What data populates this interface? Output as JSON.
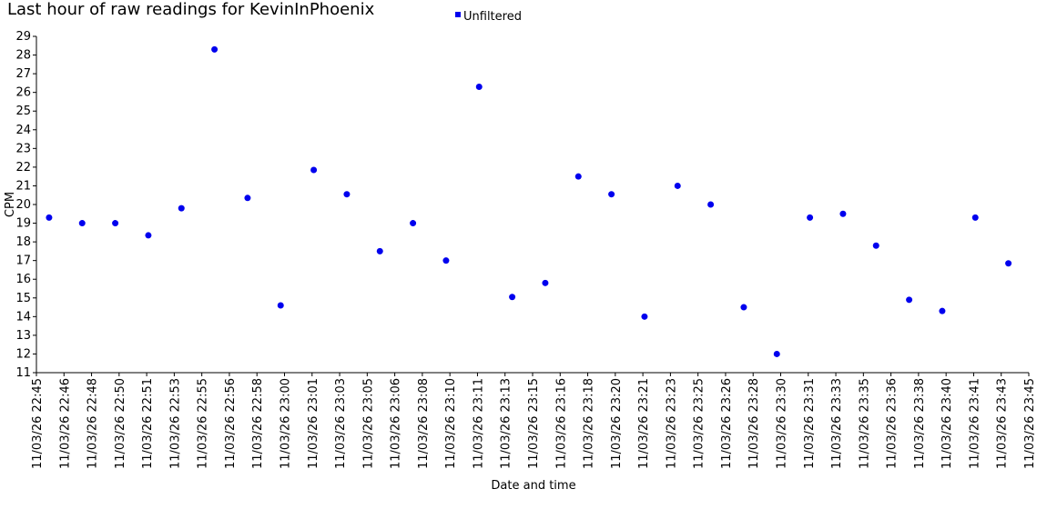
{
  "chart_data": {
    "type": "scatter",
    "title": "Last hour of raw readings for KevinInPhoenix",
    "x_label": "Date and time",
    "y_label": "CPM",
    "legend_position": "top",
    "series": [
      {
        "name": "Unfiltered",
        "color": "#0000ee",
        "x": [
          "11/03/26 22:45:46",
          "11/03/26 22:47:46",
          "11/03/26 22:49:46",
          "11/03/26 22:51:46",
          "11/03/26 22:53:46",
          "11/03/26 22:55:46",
          "11/03/26 22:57:46",
          "11/03/26 22:59:46",
          "11/03/26 23:01:46",
          "11/03/26 23:03:46",
          "11/03/26 23:05:46",
          "11/03/26 23:07:46",
          "11/03/26 23:09:46",
          "11/03/26 23:11:46",
          "11/03/26 23:13:46",
          "11/03/26 23:15:46",
          "11/03/26 23:17:46",
          "11/03/26 23:19:46",
          "11/03/26 23:21:46",
          "11/03/26 23:23:46",
          "11/03/26 23:25:46",
          "11/03/26 23:27:46",
          "11/03/26 23:29:46",
          "11/03/26 23:31:46",
          "11/03/26 23:33:46",
          "11/03/26 23:35:46",
          "11/03/26 23:37:46",
          "11/03/26 23:39:46",
          "11/03/26 23:41:46",
          "11/03/26 23:43:46"
        ],
        "values": [
          19.3,
          19.0,
          19.0,
          18.35,
          19.8,
          28.3,
          20.35,
          14.6,
          21.85,
          20.55,
          17.5,
          19.0,
          17.0,
          26.3,
          15.05,
          15.8,
          21.5,
          20.55,
          14.0,
          21.0,
          20.0,
          14.5,
          12.0,
          19.3,
          19.5,
          17.8,
          14.9,
          14.3,
          19.3,
          16.85
        ]
      }
    ],
    "xlim": [
      "11/03/26 22:45:00",
      "11/03/26 23:45:00"
    ],
    "xticks": [
      {
        "value": "11/03/26 22:45:00",
        "label": "11/03/26 22:45"
      },
      {
        "value": "11/03/26 22:46:40",
        "label": "11/03/26 22:46"
      },
      {
        "value": "11/03/26 22:48:20",
        "label": "11/03/26 22:48"
      },
      {
        "value": "11/03/26 22:50:00",
        "label": "11/03/26 22:50"
      },
      {
        "value": "11/03/26 22:51:40",
        "label": "11/03/26 22:51"
      },
      {
        "value": "11/03/26 22:53:20",
        "label": "11/03/26 22:53"
      },
      {
        "value": "11/03/26 22:55:00",
        "label": "11/03/26 22:55"
      },
      {
        "value": "11/03/26 22:56:40",
        "label": "11/03/26 22:56"
      },
      {
        "value": "11/03/26 22:58:20",
        "label": "11/03/26 22:58"
      },
      {
        "value": "11/03/26 23:00:00",
        "label": "11/03/26 23:00"
      },
      {
        "value": "11/03/26 23:01:40",
        "label": "11/03/26 23:01"
      },
      {
        "value": "11/03/26 23:03:20",
        "label": "11/03/26 23:03"
      },
      {
        "value": "11/03/26 23:05:00",
        "label": "11/03/26 23:05"
      },
      {
        "value": "11/03/26 23:06:40",
        "label": "11/03/26 23:06"
      },
      {
        "value": "11/03/26 23:08:20",
        "label": "11/03/26 23:08"
      },
      {
        "value": "11/03/26 23:10:00",
        "label": "11/03/26 23:10"
      },
      {
        "value": "11/03/26 23:11:40",
        "label": "11/03/26 23:11"
      },
      {
        "value": "11/03/26 23:13:20",
        "label": "11/03/26 23:13"
      },
      {
        "value": "11/03/26 23:15:00",
        "label": "11/03/26 23:15"
      },
      {
        "value": "11/03/26 23:16:40",
        "label": "11/03/26 23:16"
      },
      {
        "value": "11/03/26 23:18:20",
        "label": "11/03/26 23:18"
      },
      {
        "value": "11/03/26 23:20:00",
        "label": "11/03/26 23:20"
      },
      {
        "value": "11/03/26 23:21:40",
        "label": "11/03/26 23:21"
      },
      {
        "value": "11/03/26 23:23:20",
        "label": "11/03/26 23:23"
      },
      {
        "value": "11/03/26 23:25:00",
        "label": "11/03/26 23:25"
      },
      {
        "value": "11/03/26 23:26:40",
        "label": "11/03/26 23:26"
      },
      {
        "value": "11/03/26 23:28:20",
        "label": "11/03/26 23:28"
      },
      {
        "value": "11/03/26 23:30:00",
        "label": "11/03/26 23:30"
      },
      {
        "value": "11/03/26 23:31:40",
        "label": "11/03/26 23:31"
      },
      {
        "value": "11/03/26 23:33:20",
        "label": "11/03/26 23:33"
      },
      {
        "value": "11/03/26 23:35:00",
        "label": "11/03/26 23:35"
      },
      {
        "value": "11/03/26 23:36:40",
        "label": "11/03/26 23:36"
      },
      {
        "value": "11/03/26 23:38:20",
        "label": "11/03/26 23:38"
      },
      {
        "value": "11/03/26 23:40:00",
        "label": "11/03/26 23:40"
      },
      {
        "value": "11/03/26 23:41:40",
        "label": "11/03/26 23:41"
      },
      {
        "value": "11/03/26 23:43:20",
        "label": "11/03/26 23:43"
      },
      {
        "value": "11/03/26 23:45:00",
        "label": "11/03/26 23:45"
      }
    ],
    "ylim": [
      11,
      29
    ],
    "yticks": [
      11,
      12,
      13,
      14,
      15,
      16,
      17,
      18,
      19,
      20,
      21,
      22,
      23,
      24,
      25,
      26,
      27,
      28,
      29
    ],
    "grid": false
  }
}
